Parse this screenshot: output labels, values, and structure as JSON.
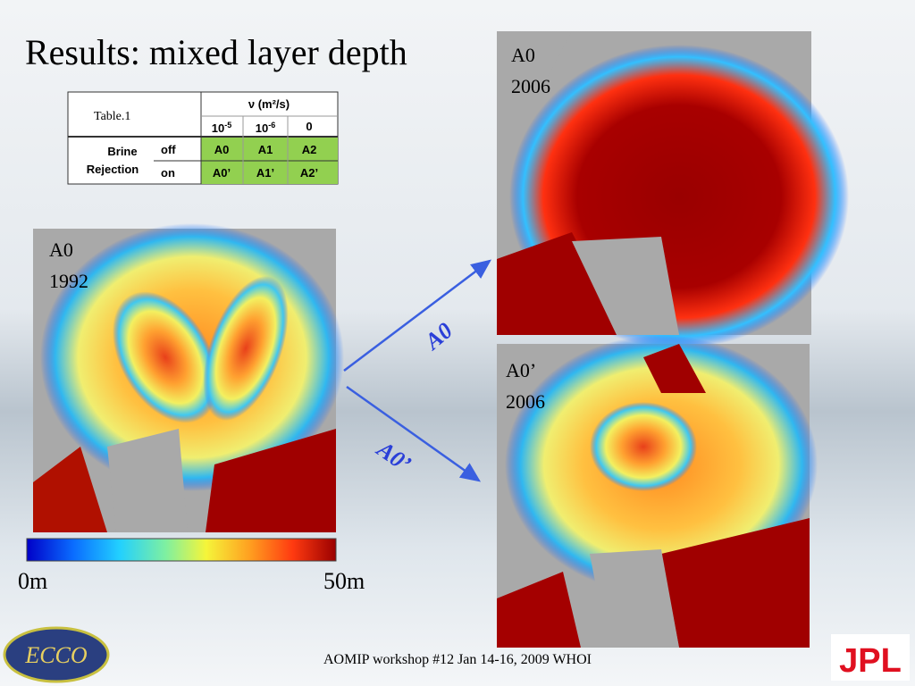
{
  "title": "Results: mixed layer depth",
  "table": {
    "caption": "Table.1",
    "header": "ν (m²/s)",
    "columns": [
      {
        "base": "10",
        "exp": "-5"
      },
      {
        "base": "10",
        "exp": "-6"
      },
      {
        "base": "0"
      }
    ],
    "row_group": [
      "Brine",
      "Rejection"
    ],
    "rows": [
      [
        "off",
        "A0",
        "A1",
        "A2"
      ],
      [
        "on",
        "A0’",
        "A1’",
        "A2’"
      ]
    ]
  },
  "maps": [
    {
      "label": [
        "A0",
        "1992"
      ]
    },
    {
      "label": [
        "A0",
        "2006"
      ]
    },
    {
      "label": [
        "A0’",
        "2006"
      ]
    }
  ],
  "colorbar": {
    "min_label": "0m",
    "max_label": "50m"
  },
  "arrows": [
    "A0",
    "A0’"
  ],
  "footer": "AOMIP workshop #12 Jan 14-16, 2009 WHOI",
  "logos": {
    "left": "ECCO",
    "right": "JPL"
  }
}
